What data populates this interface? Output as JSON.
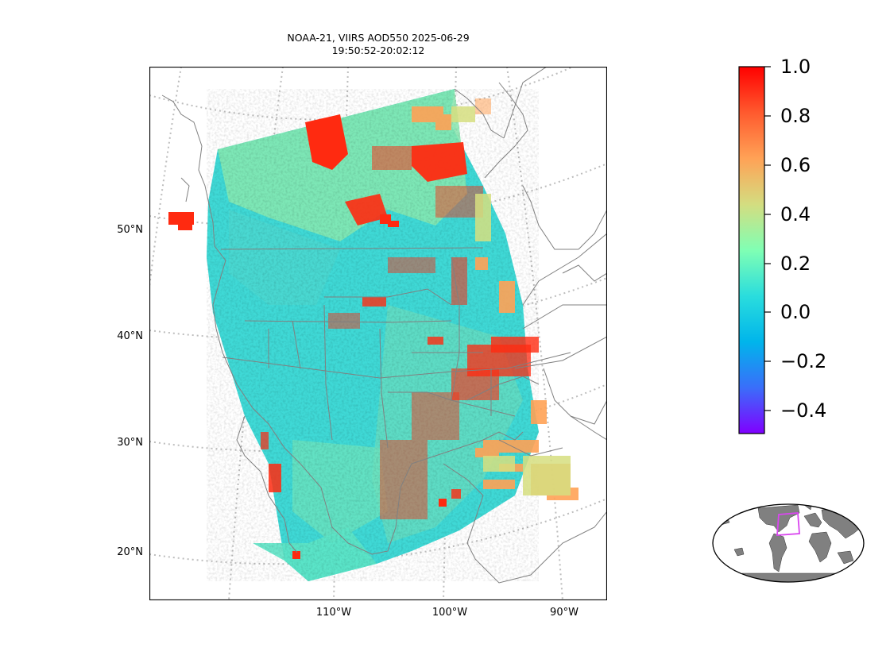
{
  "title": {
    "line1": "NOAA-21, VIIRS AOD550 2025-06-29",
    "line2": "19:50:52-20:02:12"
  },
  "map": {
    "lat_labels": [
      "50°N",
      "40°N",
      "30°N",
      "20°N"
    ],
    "lon_labels": [
      "110°W",
      "100°W",
      "90°W"
    ]
  },
  "colorbar": {
    "colormap": "rainbow",
    "min": -0.5,
    "max": 1.0,
    "tick_labels": [
      "1.0",
      "0.8",
      "0.6",
      "0.4",
      "0.2",
      "0.0",
      "−0.2",
      "−0.4"
    ],
    "colors": [
      "#8000ff",
      "#3a6efa",
      "#00b5eb",
      "#2adddd",
      "#80ffb4",
      "#d4dd80",
      "#ffa256",
      "#ff5a2e",
      "#ff0000"
    ]
  },
  "inset": {
    "land_color": "#808080",
    "region_box_color": "#d946ef"
  }
}
